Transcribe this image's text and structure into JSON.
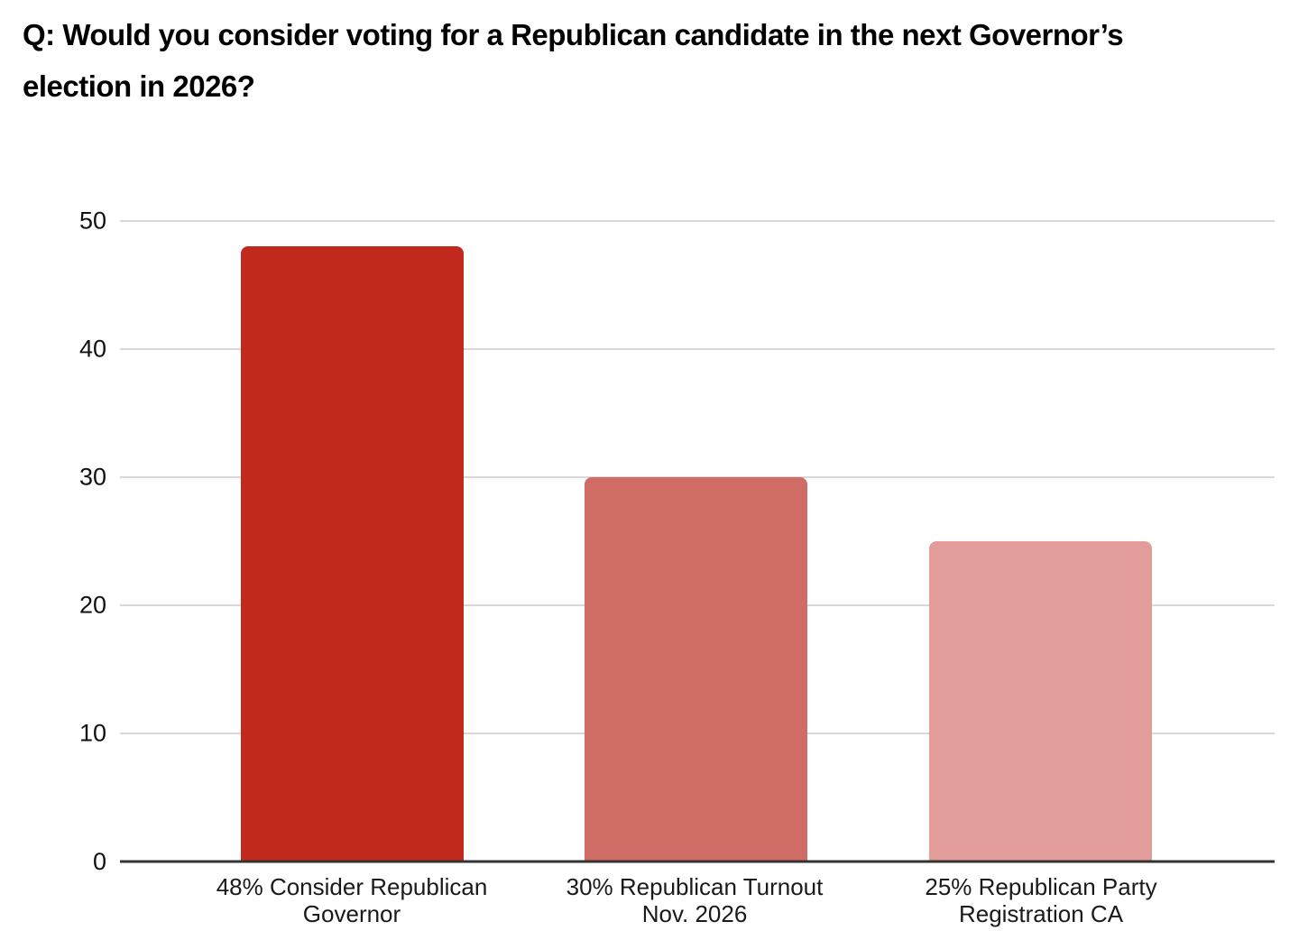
{
  "header": {
    "title_lines": [
      "Q: Would you consider voting for a Republican candidate in the next Governor’s",
      "election in 2026?"
    ]
  },
  "chart_data": {
    "type": "bar",
    "title": "Q: Would you consider voting for a Republican candidate in the next Governor’s election in 2026?",
    "categories": [
      "48% Consider Republican Governor",
      "30% Republican Turnout Nov. 2026",
      "25% Republican Party Registration CA"
    ],
    "values": [
      48,
      30,
      25
    ],
    "label_lines": [
      [
        "48% Consider Republican",
        "Governor"
      ],
      [
        "30% Republican Turnout",
        "Nov. 2026"
      ],
      [
        "25% Republican Party",
        "Registration CA"
      ]
    ],
    "bar_colors": [
      "#C0291C",
      "#CF6C66",
      "#E29D9A"
    ],
    "yticks": [
      0,
      10,
      20,
      30,
      40,
      50
    ],
    "ylim": [
      0,
      50
    ],
    "grid": true,
    "legend": "none",
    "xlabel": "",
    "ylabel": "",
    "background": "#FFFFFF",
    "gridline_color": "#D8D8D8",
    "baseline_color": "#333333",
    "text_color": "#1A1A1A"
  }
}
